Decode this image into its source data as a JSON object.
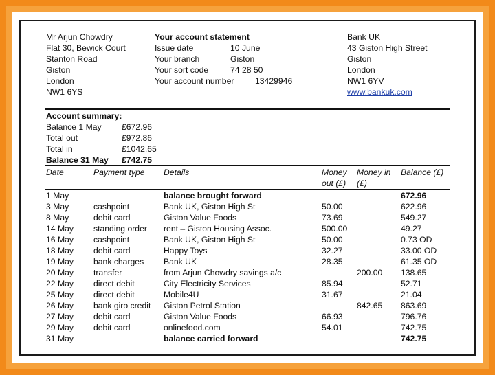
{
  "customer": {
    "name": "Mr Arjun Chowdry",
    "address": [
      "Flat 30, Bewick Court",
      "Stanton Road",
      "Giston",
      "London",
      "NW1 6YS"
    ]
  },
  "statement": {
    "title": "Your account statement",
    "fields": [
      {
        "label": "Issue date",
        "value": "10 June"
      },
      {
        "label": "Your branch",
        "value": "Giston"
      },
      {
        "label": "Your sort code",
        "value": "74 28 50"
      },
      {
        "label": "Your account number",
        "value": "13429946"
      }
    ]
  },
  "bank": {
    "name": "Bank UK",
    "address": [
      "43 Giston High Street",
      "Giston",
      "London",
      "NW1 6YV"
    ],
    "website": "www.bankuk.com"
  },
  "summary": {
    "title": "Account summary:",
    "rows": [
      {
        "label": "Balance 1 May",
        "value": "£672.96"
      },
      {
        "label": "Total out",
        "value": "£972.86"
      },
      {
        "label": "Total in",
        "value": "£1042.65"
      },
      {
        "label": "Balance 31 May",
        "value": "£742.75"
      }
    ]
  },
  "table": {
    "headers": {
      "date": "Date",
      "payment_type": "Payment type",
      "details": "Details",
      "money_out_1": "Money",
      "money_out_2": "out (£)",
      "money_in_1": "Money in",
      "money_in_2": "(£)",
      "balance": "Balance (£)"
    },
    "rows": [
      {
        "date": "1 May",
        "type": "",
        "details": "balance brought forward",
        "out": "",
        "in": "",
        "balance": "672.96",
        "bold": true
      },
      {
        "date": "3 May",
        "type": "cashpoint",
        "details": "Bank UK, Giston High St",
        "out": "50.00",
        "in": "",
        "balance": "622.96"
      },
      {
        "date": "8 May",
        "type": "debit card",
        "details": "Giston Value Foods",
        "out": "73.69",
        "in": "",
        "balance": "549.27"
      },
      {
        "date": "14 May",
        "type": "standing order",
        "details": "rent – Giston Housing Assoc.",
        "out": "500.00",
        "in": "",
        "balance": "49.27"
      },
      {
        "date": "16 May",
        "type": "cashpoint",
        "details": "Bank UK, Giston High St",
        "out": "50.00",
        "in": "",
        "balance": "0.73 OD"
      },
      {
        "date": "18 May",
        "type": "debit card",
        "details": "Happy Toys",
        "out": "32.27",
        "in": "",
        "balance": "33.00 OD"
      },
      {
        "date": "19 May",
        "type": "bank charges",
        "details": "Bank UK",
        "out": "28.35",
        "in": "",
        "balance": "61.35 OD"
      },
      {
        "date": "20 May",
        "type": "transfer",
        "details": "from Arjun Chowdry savings a/c",
        "out": "",
        "in": "200.00",
        "balance": "138.65"
      },
      {
        "date": "22 May",
        "type": "direct debit",
        "details": "City Electricity Services",
        "out": "85.94",
        "in": "",
        "balance": "52.71"
      },
      {
        "date": "25 May",
        "type": "direct debit",
        "details": "Mobile4U",
        "out": "31.67",
        "in": "",
        "balance": "21.04"
      },
      {
        "date": "26 May",
        "type": "bank giro credit",
        "details": "Giston Petrol Station",
        "out": "",
        "in": "842.65",
        "balance": "863.69"
      },
      {
        "date": "27 May",
        "type": "debit card",
        "details": "Giston Value Foods",
        "out": "66.93",
        "in": "",
        "balance": "796.76"
      },
      {
        "date": "29 May",
        "type": "debit card",
        "details": "onlinefood.com",
        "out": "54.01",
        "in": "",
        "balance": "742.75"
      },
      {
        "date": "31 May",
        "type": "",
        "details": "balance carried forward",
        "out": "",
        "in": "",
        "balance": "742.75",
        "bold": true
      }
    ]
  }
}
